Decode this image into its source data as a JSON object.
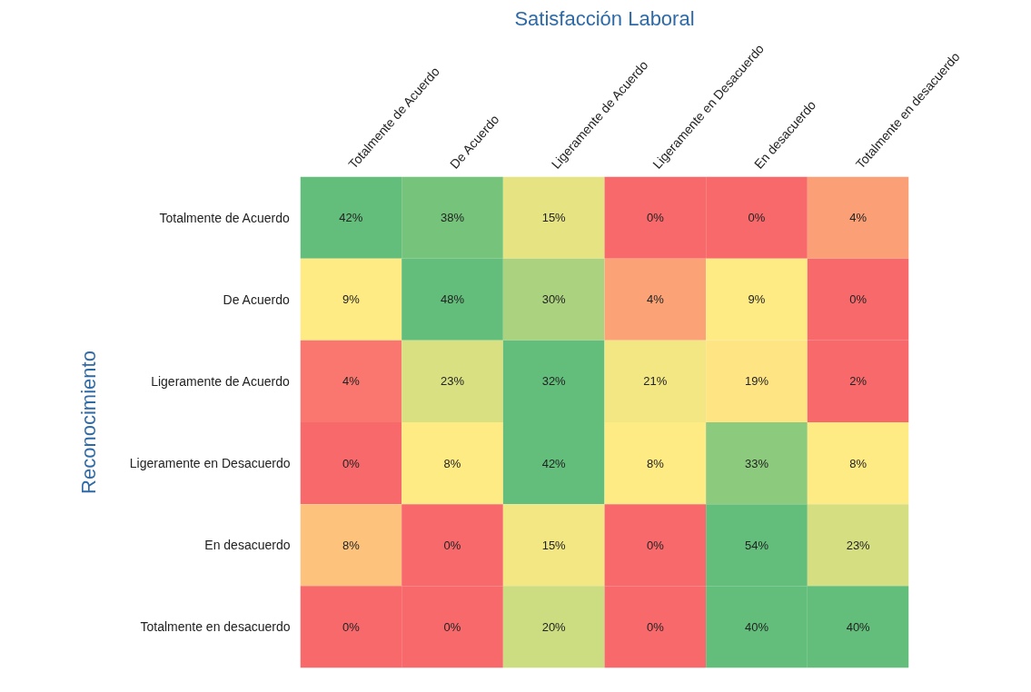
{
  "chart_data": {
    "type": "heatmap",
    "title": "Satisfacción Laboral",
    "ylabel": "Reconocimiento",
    "categories": [
      "Totalmente de Acuerdo",
      "De Acuerdo",
      "Ligeramente de Acuerdo",
      "Ligeramente en Desacuerdo",
      "En desacuerdo",
      "Totalmente en desacuerdo"
    ],
    "y_categories": [
      "Totalmente de Acuerdo",
      "De Acuerdo",
      "Ligeramente de Acuerdo",
      "Ligeramente en Desacuerdo",
      "En desacuerdo",
      "Totalmente en desacuerdo"
    ],
    "cells": [
      [
        42,
        38,
        15,
        0,
        0,
        4
      ],
      [
        9,
        48,
        30,
        4,
        9,
        0
      ],
      [
        4,
        23,
        32,
        21,
        19,
        2
      ],
      [
        0,
        8,
        42,
        8,
        33,
        8
      ],
      [
        8,
        0,
        15,
        0,
        54,
        23
      ],
      [
        0,
        0,
        20,
        0,
        40,
        40
      ]
    ],
    "cell_labels": [
      [
        "42%",
        "38%",
        "15%",
        "0%",
        "0%",
        "4%"
      ],
      [
        "9%",
        "48%",
        "30%",
        "4%",
        "9%",
        "0%"
      ],
      [
        "4%",
        "23%",
        "32%",
        "21%",
        "19%",
        "2%"
      ],
      [
        "0%",
        "8%",
        "42%",
        "8%",
        "33%",
        "8%"
      ],
      [
        "8%",
        "0%",
        "15%",
        "0%",
        "54%",
        "23%"
      ],
      [
        "0%",
        "0%",
        "20%",
        "0%",
        "40%",
        "40%"
      ]
    ]
  }
}
